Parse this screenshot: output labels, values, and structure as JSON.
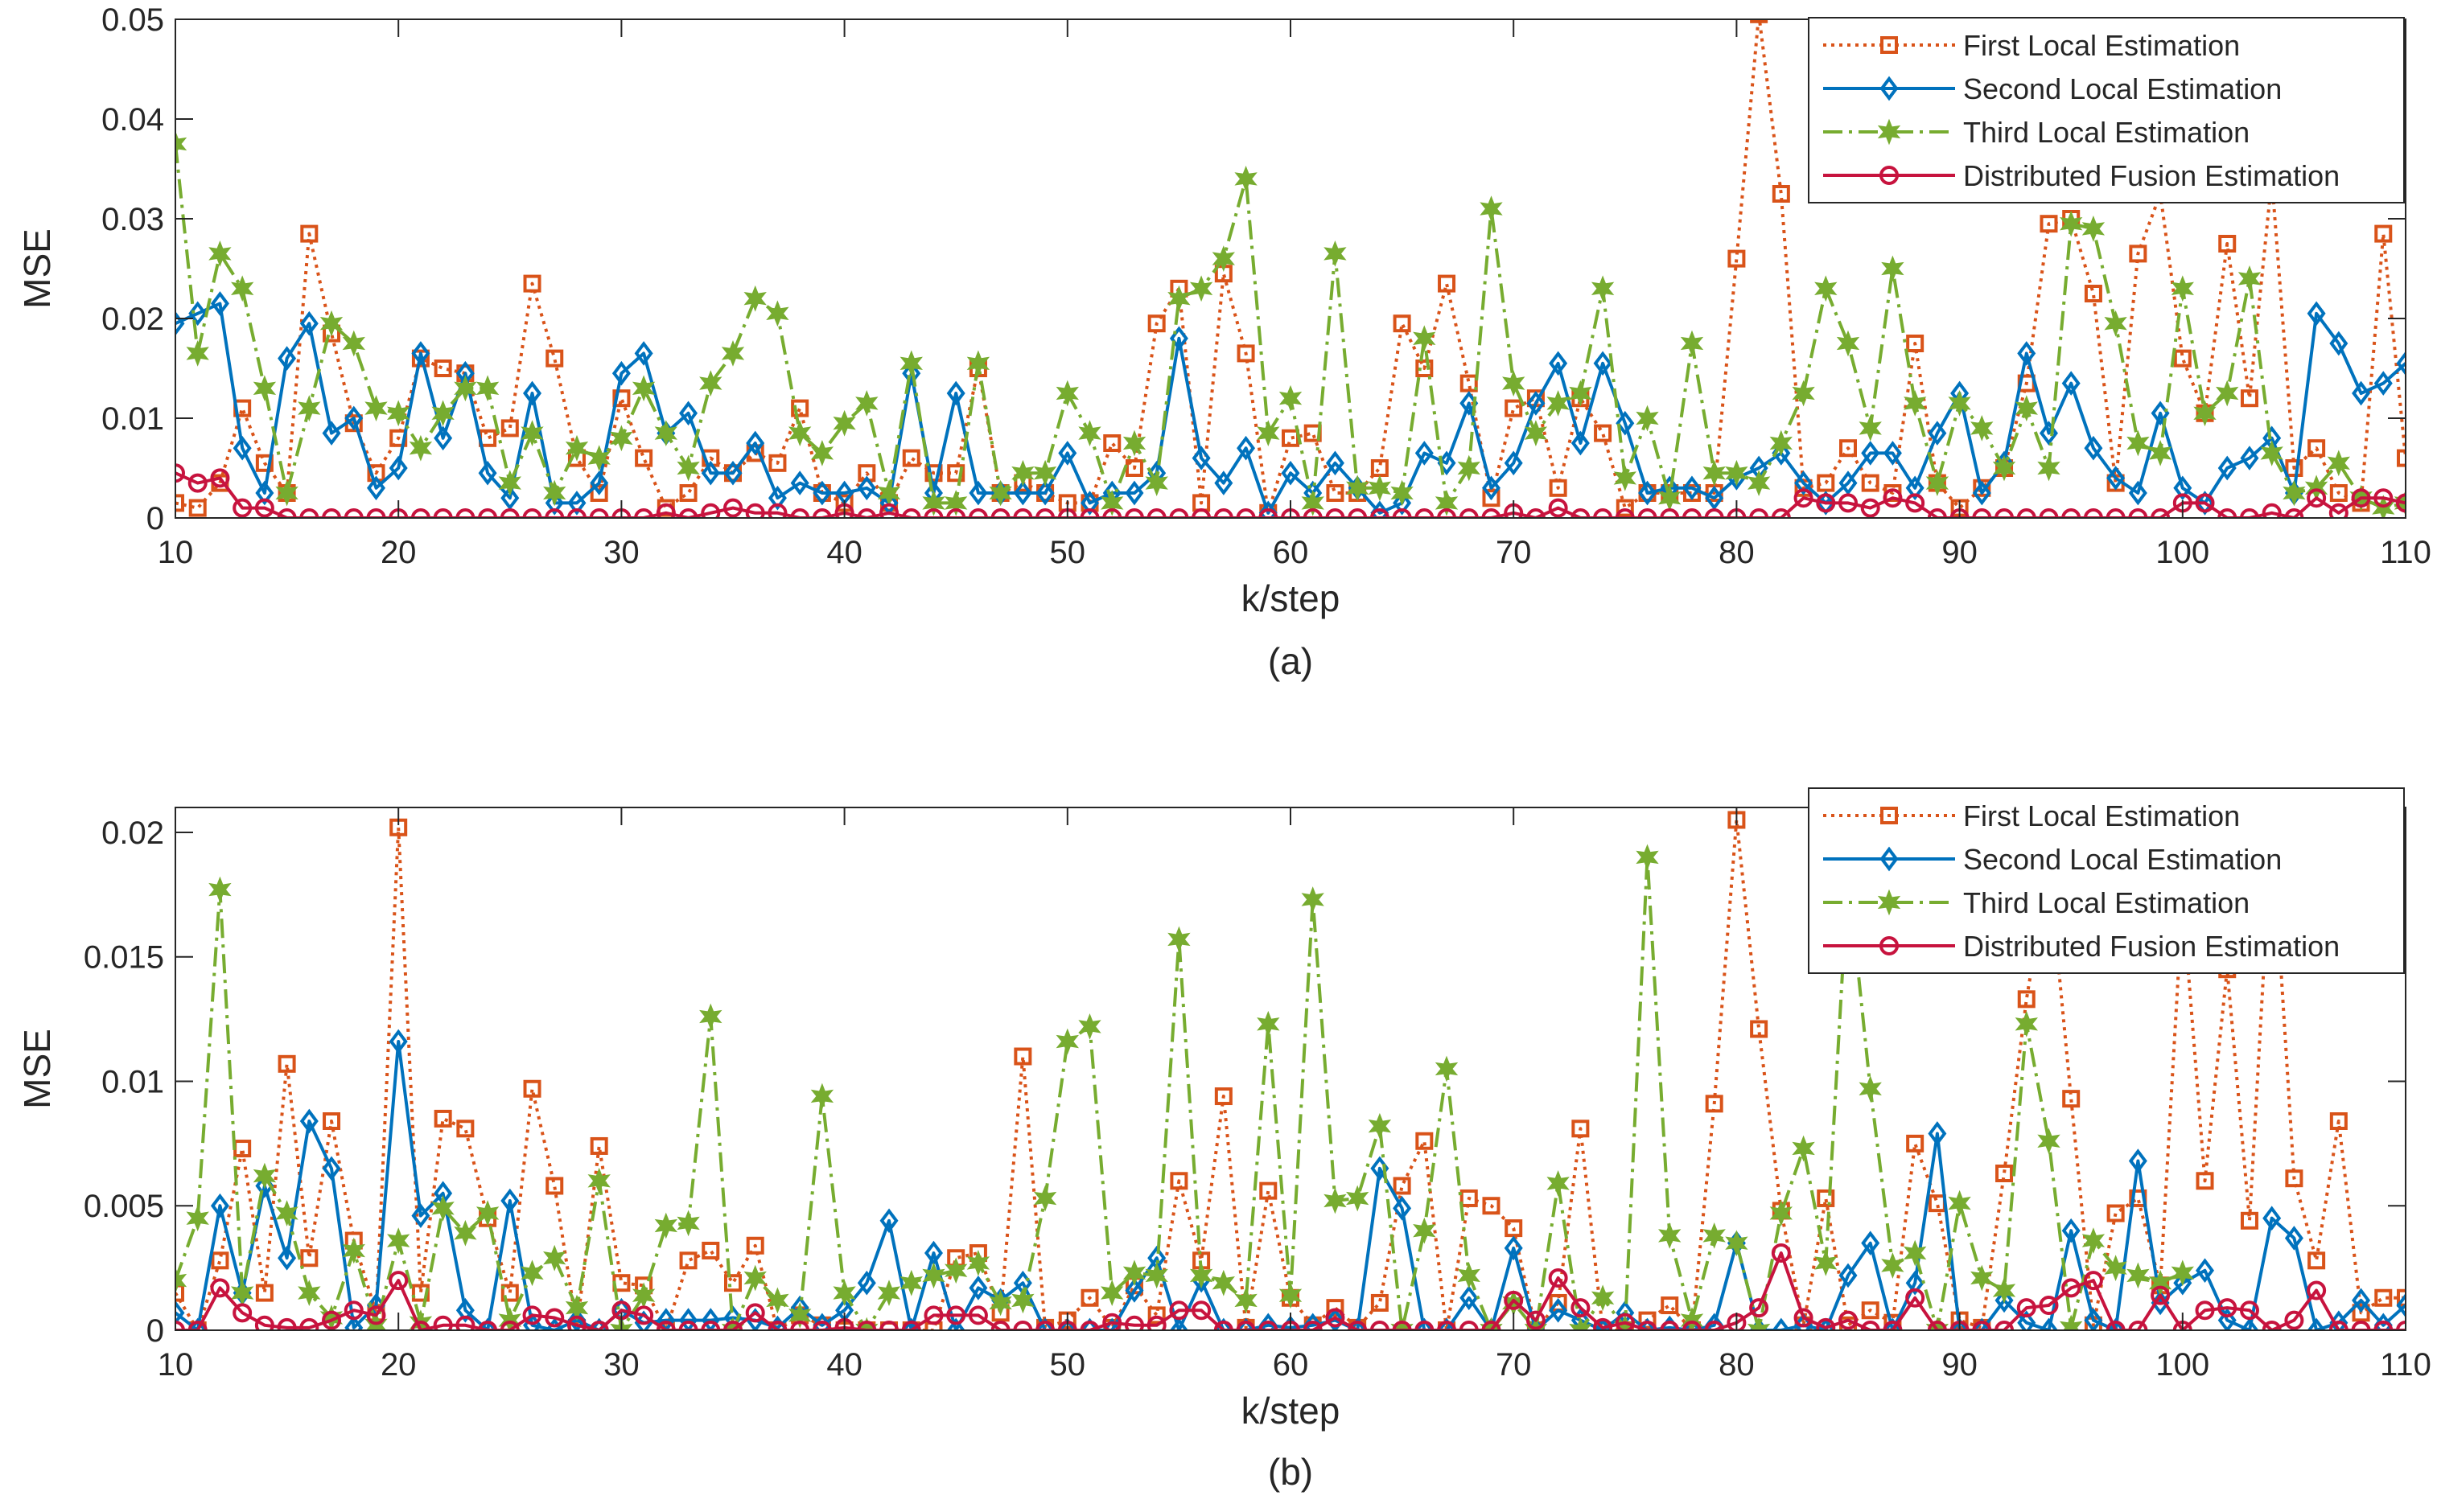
{
  "chart_data": [
    {
      "type": "line",
      "panel_label": "(a)",
      "xlabel": "k/step",
      "ylabel": "MSE",
      "xlim": [
        10,
        110
      ],
      "ylim": [
        0,
        0.05
      ],
      "xticks": [
        10,
        20,
        30,
        40,
        50,
        60,
        70,
        80,
        90,
        100,
        110
      ],
      "yticks": [
        0,
        0.01,
        0.02,
        0.03,
        0.04,
        0.05
      ],
      "ytick_labels": [
        "0",
        "0.01",
        "0.02",
        "0.03",
        "0.04",
        "0.05"
      ],
      "legend_position": "top-right",
      "x_start": 10,
      "series": [
        {
          "name": "First Local Estimation",
          "color": "#D95319",
          "line_style": "dotted",
          "marker": "square",
          "values": [
            0.0015,
            0.001,
            0.0035,
            0.011,
            0.0055,
            0.0025,
            0.0285,
            0.0185,
            0.0095,
            0.0045,
            0.008,
            0.016,
            0.015,
            0.0145,
            0.008,
            0.009,
            0.0235,
            0.016,
            0.006,
            0.0025,
            0.012,
            0.006,
            0.001,
            0.0025,
            0.006,
            0.0045,
            0.0065,
            0.0055,
            0.011,
            0.0025,
            0.0015,
            0.0045,
            0.0015,
            0.006,
            0.0045,
            0.0045,
            0.015,
            0.0025,
            0.0035,
            0.0025,
            0.0015,
            0.0015,
            0.0075,
            0.005,
            0.0195,
            0.023,
            0.0015,
            0.0245,
            0.0165,
            0.0005,
            0.008,
            0.0085,
            0.0025,
            0.0025,
            0.005,
            0.0195,
            0.015,
            0.0235,
            0.0135,
            0.002,
            0.011,
            0.012,
            0.003,
            0.012,
            0.0085,
            0.001,
            0.0025,
            0.0025,
            0.0025,
            0.0025,
            0.026,
            0.0505,
            0.0325,
            0.003,
            0.0035,
            0.007,
            0.0035,
            0.0025,
            0.0175,
            0.0035,
            0.001,
            0.003,
            0.005,
            0.0135,
            0.0295,
            0.03,
            0.0225,
            0.0035,
            0.0265,
            0.0325,
            0.016,
            0.0105,
            0.0275,
            0.012,
            0.034,
            0.005,
            0.007,
            0.0025,
            0.0015,
            0.0285,
            0.006
          ]
        },
        {
          "name": "Second Local Estimation",
          "color": "#0072BD",
          "line_style": "solid",
          "marker": "diamond",
          "values": [
            0.0195,
            0.0205,
            0.0215,
            0.007,
            0.0025,
            0.016,
            0.0195,
            0.0085,
            0.01,
            0.003,
            0.005,
            0.0165,
            0.008,
            0.0145,
            0.0045,
            0.002,
            0.0125,
            0.0015,
            0.0015,
            0.0035,
            0.0145,
            0.0165,
            0.0085,
            0.0105,
            0.0045,
            0.0045,
            0.0075,
            0.002,
            0.0035,
            0.0025,
            0.0025,
            0.003,
            0.0015,
            0.0145,
            0.0025,
            0.0125,
            0.0025,
            0.0025,
            0.0025,
            0.0025,
            0.0065,
            0.0015,
            0.0025,
            0.0025,
            0.0045,
            0.018,
            0.006,
            0.0035,
            0.007,
            0.0005,
            0.0045,
            0.0025,
            0.0055,
            0.003,
            0.0005,
            0.0015,
            0.0065,
            0.0055,
            0.0115,
            0.003,
            0.0055,
            0.0115,
            0.0155,
            0.0075,
            0.0155,
            0.0095,
            0.0025,
            0.003,
            0.003,
            0.002,
            0.004,
            0.005,
            0.0065,
            0.0035,
            0.0015,
            0.0035,
            0.0065,
            0.0065,
            0.003,
            0.0085,
            0.0125,
            0.0025,
            0.0055,
            0.0165,
            0.0085,
            0.0135,
            0.007,
            0.004,
            0.0025,
            0.0105,
            0.003,
            0.0015,
            0.005,
            0.006,
            0.008,
            0.0025,
            0.0205,
            0.0175,
            0.0125,
            0.0135,
            0.0155
          ]
        },
        {
          "name": "Third Local Estimation",
          "color": "#77AC30",
          "line_style": "dashdot",
          "marker": "hexagram",
          "values": [
            0.0375,
            0.0165,
            0.0265,
            0.023,
            0.013,
            0.0025,
            0.011,
            0.0195,
            0.0175,
            0.011,
            0.0105,
            0.007,
            0.0105,
            0.013,
            0.013,
            0.0035,
            0.0085,
            0.0025,
            0.007,
            0.006,
            0.008,
            0.013,
            0.0085,
            0.005,
            0.0135,
            0.0165,
            0.022,
            0.0205,
            0.0085,
            0.0065,
            0.0095,
            0.0115,
            0.0025,
            0.0155,
            0.0015,
            0.0015,
            0.0155,
            0.0025,
            0.0045,
            0.0045,
            0.0125,
            0.0085,
            0.0015,
            0.0075,
            0.0035,
            0.022,
            0.023,
            0.026,
            0.034,
            0.0085,
            0.012,
            0.0015,
            0.0265,
            0.003,
            0.003,
            0.0025,
            0.018,
            0.0015,
            0.005,
            0.031,
            0.0135,
            0.0085,
            0.0115,
            0.0125,
            0.023,
            0.004,
            0.01,
            0.002,
            0.0175,
            0.0045,
            0.0045,
            0.0035,
            0.0075,
            0.0125,
            0.023,
            0.0175,
            0.009,
            0.025,
            0.0115,
            0.0035,
            0.0115,
            0.009,
            0.005,
            0.011,
            0.005,
            0.0295,
            0.029,
            0.0195,
            0.0075,
            0.0065,
            0.023,
            0.0105,
            0.0125,
            0.024,
            0.0065,
            0.0025,
            0.003,
            0.0055,
            0.002,
            0.001,
            0.0015
          ]
        },
        {
          "name": "Distributed Fusion Estimation",
          "color": "#C7133E",
          "line_style": "solid",
          "marker": "circle",
          "values": [
            0.0045,
            0.0035,
            0.004,
            0.001,
            0.001,
            0.0,
            0.0,
            0.0,
            0.0,
            0.0,
            0.0,
            0.0,
            0.0,
            0.0,
            0.0,
            0.0,
            0.0,
            0.0,
            0.0,
            0.0,
            0.0,
            0.0,
            0.0005,
            0.0,
            0.0005,
            0.001,
            0.0005,
            0.0005,
            0.0,
            0.0,
            0.0005,
            0.0,
            0.0005,
            0.0,
            0.0,
            0.0,
            0.0,
            0.0,
            0.0,
            0.0,
            0.0,
            0.0,
            0.0,
            0.0,
            0.0,
            0.0,
            0.0,
            0.0,
            0.0,
            0.0,
            0.0,
            0.0,
            0.0,
            0.0,
            0.0,
            0.0,
            0.0,
            0.0,
            0.0,
            0.0,
            0.0005,
            0.0,
            0.001,
            0.0,
            0.0,
            0.0,
            0.0,
            0.0,
            0.0,
            0.0,
            0.0,
            0.0,
            0.0,
            0.002,
            0.0015,
            0.0015,
            0.001,
            0.002,
            0.0015,
            0.0,
            0.0,
            0.0,
            0.0,
            0.0,
            0.0,
            0.0,
            0.0,
            0.0,
            0.0,
            0.0,
            0.0015,
            0.0015,
            0.0,
            0.0,
            0.0005,
            0.0,
            0.002,
            0.0005,
            0.002,
            0.002,
            0.0015
          ]
        }
      ]
    },
    {
      "type": "line",
      "panel_label": "(b)",
      "xlabel": "k/step",
      "ylabel": "MSE",
      "xlim": [
        10,
        110
      ],
      "ylim": [
        0,
        0.021
      ],
      "xticks": [
        10,
        20,
        30,
        40,
        50,
        60,
        70,
        80,
        90,
        100,
        110
      ],
      "yticks": [
        0,
        0.005,
        0.01,
        0.015,
        0.02
      ],
      "ytick_labels": [
        "0",
        "0.005",
        "0.01",
        "0.015",
        "0.02"
      ],
      "legend_position": "top-right",
      "x_start": 10,
      "series": [
        {
          "name": "First Local Estimation",
          "color": "#D95319",
          "line_style": "dotted",
          "marker": "square",
          "values": [
            0.0015,
            0.0,
            0.0028,
            0.0073,
            0.0015,
            0.0107,
            0.0029,
            0.0084,
            0.0036,
            0.0007,
            0.0202,
            0.0015,
            0.0085,
            0.0081,
            0.0045,
            0.0015,
            0.0097,
            0.0058,
            0.0001,
            0.0074,
            0.0019,
            0.0018,
            0.0,
            0.0028,
            0.0032,
            0.0019,
            0.0034,
            0.0,
            0.0006,
            0.0002,
            0.0,
            0.0,
            0.0,
            0.0,
            0.0,
            0.0029,
            0.0031,
            0.0007,
            0.011,
            0.0001,
            0.0004,
            0.0013,
            0.0001,
            0.0018,
            0.0006,
            0.006,
            0.0028,
            0.0094,
            0.0001,
            0.0056,
            0.0013,
            0.0002,
            0.0009,
            0.0001,
            0.0011,
            0.0058,
            0.0076,
            0.0,
            0.0053,
            0.005,
            0.0041,
            0.0,
            0.0011,
            0.0081,
            0.0,
            0.0,
            0.0004,
            0.001,
            0.0,
            0.0091,
            0.0205,
            0.0121,
            0.0048,
            0.0002,
            0.0053,
            0.0002,
            0.0008,
            0.0003,
            0.0075,
            0.0051,
            0.0004,
            0.0001,
            0.0063,
            0.0133,
            0.0187,
            0.0093,
            0.0002,
            0.0047,
            0.0053,
            0.0018,
            0.0173,
            0.006,
            0.0145,
            0.0044,
            0.0203,
            0.0061,
            0.0028,
            0.0084,
            0.0007,
            0.0013,
            0.0013
          ]
        },
        {
          "name": "Second Local Estimation",
          "color": "#0072BD",
          "line_style": "solid",
          "marker": "diamond",
          "values": [
            0.0007,
            0.0,
            0.005,
            0.0015,
            0.0058,
            0.0029,
            0.0084,
            0.0065,
            0.0001,
            0.001,
            0.0116,
            0.0046,
            0.0055,
            0.0008,
            0.0,
            0.0052,
            0.0002,
            0.0,
            0.0004,
            0.0,
            0.0008,
            0.0003,
            0.0004,
            0.0004,
            0.0004,
            0.0005,
            0.0004,
            0.0001,
            0.0009,
            0.0002,
            0.0008,
            0.0019,
            0.0044,
            0.0,
            0.0031,
            0.0,
            0.0017,
            0.0012,
            0.0019,
            0.0,
            0.0,
            0.0,
            0.0,
            0.0016,
            0.0029,
            0.0,
            0.002,
            0.0,
            0.0,
            0.0002,
            0.0001,
            0.0002,
            0.0004,
            0.0,
            0.0065,
            0.0049,
            0.0,
            0.0,
            0.0013,
            0.0,
            0.0033,
            0.0,
            0.0008,
            0.0004,
            0.0,
            0.0007,
            0.0,
            0.0001,
            0.0,
            0.0002,
            0.0035,
            0.0,
            0.0,
            0.0002,
            0.0,
            0.0022,
            0.0035,
            0.0,
            0.0019,
            0.0079,
            0.0,
            0.0,
            0.0012,
            0.0003,
            0.0,
            0.004,
            0.0004,
            0.0,
            0.0068,
            0.0011,
            0.0019,
            0.0024,
            0.0004,
            0.0,
            0.0045,
            0.0037,
            0.0,
            0.0003,
            0.0012,
            0.0002,
            0.001
          ]
        },
        {
          "name": "Third Local Estimation",
          "color": "#77AC30",
          "line_style": "dashdot",
          "marker": "hexagram",
          "values": [
            0.002,
            0.0045,
            0.0177,
            0.0015,
            0.0062,
            0.0047,
            0.0015,
            0.0005,
            0.0032,
            0.0002,
            0.0036,
            0.0003,
            0.0049,
            0.0039,
            0.0047,
            0.0004,
            0.0023,
            0.0029,
            0.0009,
            0.006,
            0.0,
            0.0014,
            0.0042,
            0.0043,
            0.0126,
            0.0,
            0.0021,
            0.0012,
            0.0006,
            0.0094,
            0.0015,
            0.0,
            0.0015,
            0.0019,
            0.0022,
            0.0024,
            0.0027,
            0.0011,
            0.0012,
            0.0053,
            0.0116,
            0.0122,
            0.0015,
            0.0023,
            0.0022,
            0.0157,
            0.0022,
            0.0019,
            0.0012,
            0.0123,
            0.0014,
            0.0173,
            0.0052,
            0.0053,
            0.0082,
            0.0,
            0.004,
            0.0105,
            0.0022,
            0.0,
            0.0011,
            0.0,
            0.0059,
            0.0,
            0.0013,
            0.0001,
            0.019,
            0.0038,
            0.0004,
            0.0038,
            0.0035,
            0.0,
            0.0047,
            0.0073,
            0.0027,
            0.0183,
            0.0097,
            0.0026,
            0.0031,
            0.0,
            0.0051,
            0.0021,
            0.0016,
            0.0123,
            0.0076,
            0.0001,
            0.0036,
            0.0025,
            0.0022,
            0.0019,
            0.0023
          ]
        },
        {
          "name": "Distributed Fusion Estimation",
          "color": "#C7133E",
          "line_style": "solid",
          "marker": "circle",
          "values": [
            0.0,
            0.0,
            0.0017,
            0.0007,
            0.0002,
            0.0001,
            0.0001,
            0.0004,
            0.0008,
            0.0006,
            0.002,
            0.0,
            0.0002,
            0.0002,
            0.0,
            0.0,
            0.0006,
            0.0005,
            0.0002,
            0.0,
            0.0008,
            0.0006,
            0.0,
            0.0,
            0.0,
            0.0,
            0.0007,
            0.0,
            0.0,
            0.0,
            0.0001,
            0.0,
            0.0,
            0.0,
            0.0006,
            0.0006,
            0.0006,
            0.0,
            0.0,
            0.0,
            0.0,
            0.0,
            0.0003,
            0.0002,
            0.0002,
            0.0008,
            0.0008,
            0.0,
            0.0,
            0.0,
            0.0,
            0.0,
            0.0005,
            0.0,
            0.0,
            0.0,
            0.0,
            0.0,
            0.0,
            0.0,
            0.0012,
            0.0004,
            0.0021,
            0.0009,
            0.0001,
            0.0003,
            0.0,
            0.0,
            0.0,
            0.0,
            0.0003,
            0.0009,
            0.0031,
            0.0005,
            0.0001,
            0.0004,
            0.0,
            0.0,
            0.0013,
            0.0,
            0.0,
            0.0,
            0.0,
            0.0009,
            0.001,
            0.0017,
            0.002,
            0.0,
            0.0,
            0.0014,
            0.0,
            0.0008,
            0.0009,
            0.0008,
            0.0,
            0.0004,
            0.0016,
            0.0,
            0.0,
            0.0,
            0.0
          ]
        }
      ]
    }
  ]
}
